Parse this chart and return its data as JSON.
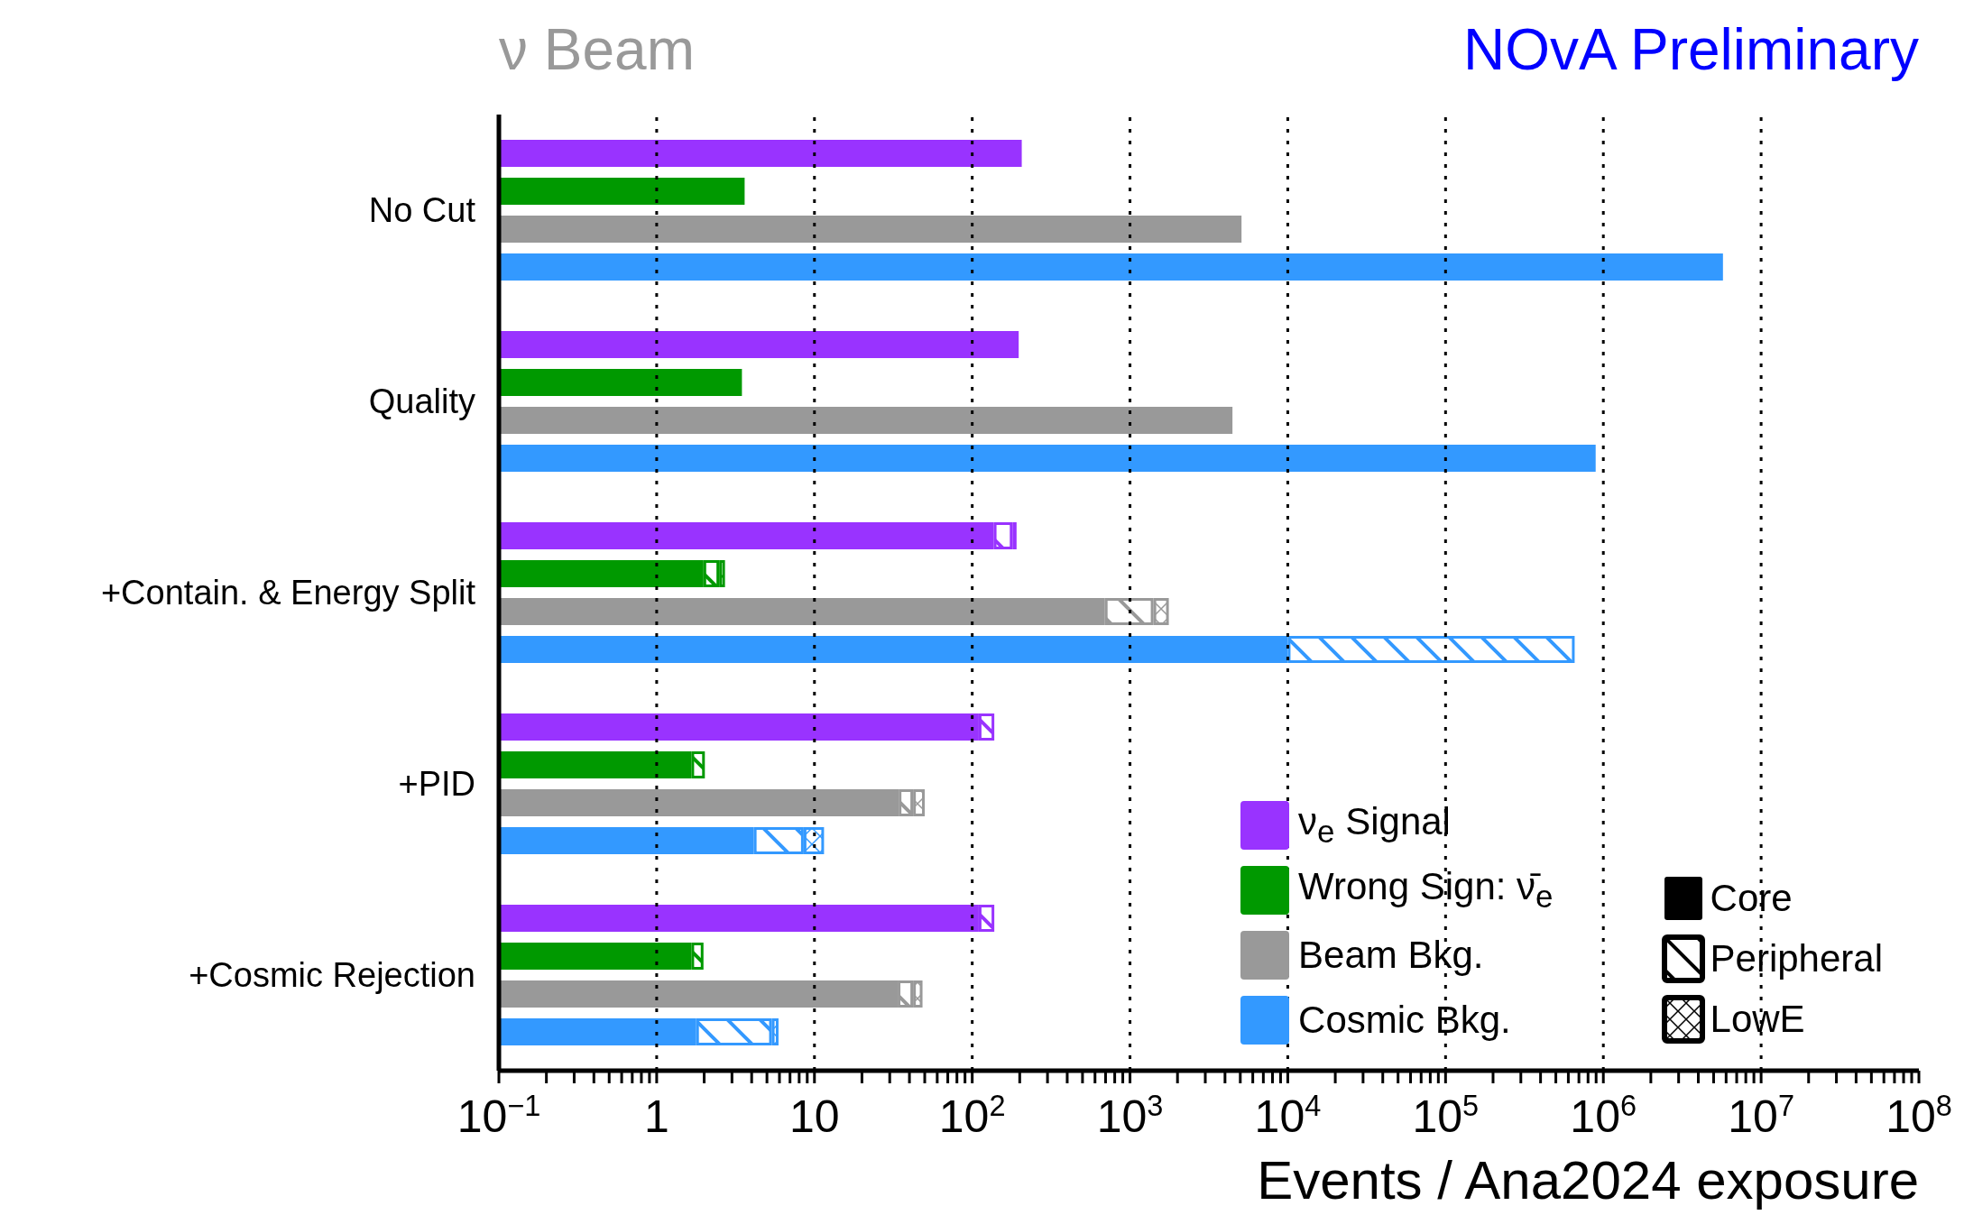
{
  "chart_data": {
    "type": "bar",
    "orientation": "horizontal",
    "log": "x",
    "grid": "x",
    "legend": "bottom right",
    "title": "ν Beam",
    "subtitle": "NOvA Preliminary",
    "xlabel": "Events / Ana2024 exposure",
    "categories": [
      "No Cut",
      "Quality",
      "+Contain. & Energy Split",
      "+PID",
      "+Cosmic Rejection"
    ],
    "series": [
      {
        "name": "ν$_{e}$ Signal",
        "color": "#9933ff",
        "values": [
          206,
          197,
          137,
          110,
          110
        ]
      },
      {
        "color": "#9933ff",
        "values": [
          null,
          null,
          43,
          28,
          28
        ],
        "base": [
          null,
          null,
          137,
          110,
          110
        ]
      },
      {
        "color": "#9933ff",
        "values": [
          null,
          null,
          11,
          null,
          null
        ],
        "base": [
          null,
          null,
          180,
          null,
          null
        ]
      },
      {
        "name": "Wrong Sign: ν̄$_{e}$",
        "color": "#009900",
        "values": [
          3.61,
          3.47,
          1.98,
          1.66,
          1.66
        ]
      },
      {
        "color": "#009900",
        "values": [
          null,
          null,
          0.51,
          0.36,
          0.32
        ],
        "base": [
          null,
          null,
          1.98,
          1.66,
          1.66
        ]
      },
      {
        "color": "#009900",
        "values": [
          null,
          null,
          0.22,
          null,
          null
        ],
        "base": [
          null,
          null,
          2.49,
          null,
          null
        ]
      },
      {
        "name": "Beam Bkg.",
        "color": "#999999",
        "values": [
          5090,
          4460,
          693,
          34.2,
          33.7
        ]
      },
      {
        "color": "#999999",
        "values": [
          null,
          null,
          716,
          8,
          8.5
        ],
        "base": [
          null,
          null,
          693,
          34.2,
          33.7
        ]
      },
      {
        "color": "#999999",
        "values": [
          null,
          null,
          353,
          7.8,
          6.2
        ],
        "base": [
          null,
          null,
          1409,
          42.2,
          42.2
        ]
      },
      {
        "name": "Cosmic Bkg.",
        "color": "#3399ff",
        "values": [
          5730000,
          894000,
          10000,
          4.13,
          1.78
        ]
      },
      {
        "color": "#3399ff",
        "values": [
          null,
          null,
          648000,
          4.42,
          3.59
        ],
        "base": [
          null,
          null,
          10000,
          4.13,
          1.78
        ]
      },
      {
        "color": "#3399ff",
        "values": [
          null,
          null,
          null,
          2.95,
          0.55
        ],
        "base": [
          null,
          null,
          null,
          8.55,
          5.37
        ]
      }
    ],
    "annotations": [
      "Core",
      "Peripheral",
      "LowE"
    ],
    "xlim": [
      0.1,
      100000000
    ],
    "xticks": [
      {
        "value": 0.1,
        "label": "10$^{−1}$"
      },
      {
        "value": 0.2,
        "label": null
      },
      {
        "value": 0.3,
        "label": null
      },
      {
        "value": 0.4,
        "label": null
      },
      {
        "value": 0.5,
        "label": null
      },
      {
        "value": 0.6,
        "label": null
      },
      {
        "value": 0.7,
        "label": null
      },
      {
        "value": 0.8,
        "label": null
      },
      {
        "value": 0.9,
        "label": null
      },
      1,
      {
        "value": 2,
        "label": null
      },
      {
        "value": 3,
        "label": null
      },
      {
        "value": 4,
        "label": null
      },
      {
        "value": 5,
        "label": null
      },
      {
        "value": 6,
        "label": null
      },
      {
        "value": 7,
        "label": null
      },
      {
        "value": 8,
        "label": null
      },
      {
        "value": 9,
        "label": null
      },
      10,
      {
        "value": 20,
        "label": null
      },
      {
        "value": 30,
        "label": null
      },
      {
        "value": 40,
        "label": null
      },
      {
        "value": 50,
        "label": null
      },
      {
        "value": 60,
        "label": null
      },
      {
        "value": 70,
        "label": null
      },
      {
        "value": 80,
        "label": null
      },
      {
        "value": 90,
        "label": null
      },
      {
        "value": 100,
        "label": "10$^{2}$"
      },
      {
        "value": 200,
        "label": null
      },
      {
        "value": 300,
        "label": null
      },
      {
        "value": 400,
        "label": null
      },
      {
        "value": 500,
        "label": null
      },
      {
        "value": 600,
        "label": null
      },
      {
        "value": 700,
        "label": null
      },
      {
        "value": 800,
        "label": null
      },
      {
        "value": 900,
        "label": null
      },
      {
        "value": 1000,
        "label": "10$^{3}$"
      },
      {
        "value": 2000,
        "label": null
      },
      {
        "value": 3000,
        "label": null
      },
      {
        "value": 4000,
        "label": null
      },
      {
        "value": 5000,
        "label": null
      },
      {
        "value": 6000,
        "label": null
      },
      {
        "value": 7000,
        "label": null
      },
      {
        "value": 8000,
        "label": null
      },
      {
        "value": 9000,
        "label": null
      },
      {
        "value": 10000,
        "label": "10$^{4}$"
      },
      {
        "value": 20000,
        "label": null
      },
      {
        "value": 30000,
        "label": null
      },
      {
        "value": 40000,
        "label": null
      },
      {
        "value": 50000,
        "label": null
      },
      {
        "value": 60000,
        "label": null
      },
      {
        "value": 70000,
        "label": null
      },
      {
        "value": 80000,
        "label": null
      },
      {
        "value": 90000,
        "label": null
      },
      {
        "value": 100000,
        "label": "10$^{5}$"
      },
      {
        "value": 200000,
        "label": null
      },
      {
        "value": 300000,
        "label": null
      },
      {
        "value": 400000,
        "label": null
      },
      {
        "value": 500000,
        "label": null
      },
      {
        "value": 600000,
        "label": null
      },
      {
        "value": 700000,
        "label": null
      },
      {
        "value": 800000,
        "label": null
      },
      {
        "value": 900000,
        "label": null
      },
      {
        "value": 1000000,
        "label": "10$^{6}$"
      },
      {
        "value": 2000000,
        "label": null
      },
      {
        "value": 3000000,
        "label": null
      },
      {
        "value": 4000000,
        "label": null
      },
      {
        "value": 5000000,
        "label": null
      },
      {
        "value": 6000000,
        "label": null
      },
      {
        "value": 7000000,
        "label": null
      },
      {
        "value": 8000000,
        "label": null
      },
      {
        "value": 9000000,
        "label": null
      },
      {
        "value": 10000000,
        "label": "10$^{7}$"
      },
      {
        "value": 20000000,
        "label": null
      },
      {
        "value": 30000000,
        "label": null
      },
      {
        "value": 40000000,
        "label": null
      },
      {
        "value": 50000000,
        "label": null
      },
      {
        "value": 60000000,
        "label": null
      },
      {
        "value": 70000000,
        "label": null
      },
      {
        "value": 80000000,
        "label": null
      },
      {
        "value": 90000000,
        "label": null
      },
      {
        "value": 100000000,
        "label": "10$^{8}$"
      }
    ]
  }
}
